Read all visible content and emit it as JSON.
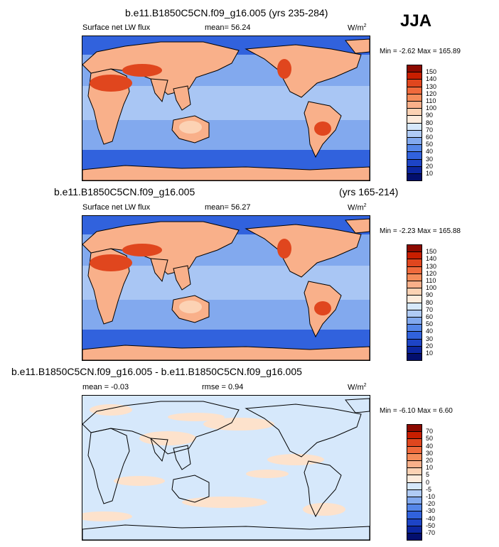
{
  "season": "JJA",
  "panels": [
    {
      "title": "b.e11.B1850C5CN.f09_g16.005 (yrs 235-284)",
      "title_right": "",
      "left_label": "Surface net LW flux",
      "center_label": "mean=  56.24",
      "units": "W/m",
      "units_sup": "2",
      "minmax": "Min =  -2.62 Max = 165.89",
      "levels": [
        "150",
        "140",
        "130",
        "120",
        "110",
        "100",
        "90",
        "80",
        "70",
        "60",
        "50",
        "40",
        "30",
        "20",
        "10"
      ],
      "colors": [
        "#8c0a00",
        "#c81e00",
        "#e0461e",
        "#f06a3c",
        "#f58c5a",
        "#f9b08a",
        "#fcd2b4",
        "#fdebdc",
        "#d6e8fb",
        "#b0cbf5",
        "#82a9ee",
        "#5586e8",
        "#3162dd",
        "#1d44c6",
        "#0c26a0",
        "#030f6e"
      ]
    },
    {
      "title": "b.e11.B1850C5CN.f09_g16.005",
      "title_right": "(yrs 165-214)",
      "left_label": "Surface net LW flux",
      "center_label": "mean=  56.27",
      "units": "W/m",
      "units_sup": "2",
      "minmax": "Min =  -2.23 Max = 165.88",
      "levels": [
        "150",
        "140",
        "130",
        "120",
        "110",
        "100",
        "90",
        "80",
        "70",
        "60",
        "50",
        "40",
        "30",
        "20",
        "10"
      ],
      "colors": [
        "#8c0a00",
        "#c81e00",
        "#e0461e",
        "#f06a3c",
        "#f58c5a",
        "#f9b08a",
        "#fcd2b4",
        "#fdebdc",
        "#d6e8fb",
        "#b0cbf5",
        "#82a9ee",
        "#5586e8",
        "#3162dd",
        "#1d44c6",
        "#0c26a0",
        "#030f6e"
      ]
    },
    {
      "title": "b.e11.B1850C5CN.f09_g16.005 - b.e11.B1850C5CN.f09_g16.005",
      "title_right": "",
      "left_label": "mean =  -0.03",
      "center_label": "rmse =   0.94",
      "units": "W/m",
      "units_sup": "2",
      "minmax": "Min =  -6.10 Max =   6.60",
      "levels": [
        "70",
        "50",
        "40",
        "30",
        "20",
        "10",
        "5",
        "0",
        "-5",
        "-10",
        "-20",
        "-30",
        "-40",
        "-50",
        "-70"
      ],
      "colors": [
        "#8c0a00",
        "#c81e00",
        "#e0461e",
        "#f06a3c",
        "#f58c5a",
        "#f9b08a",
        "#fcd2b4",
        "#fdebdc",
        "#d6e8fb",
        "#b0cbf5",
        "#82a9ee",
        "#5586e8",
        "#3162dd",
        "#1d44c6",
        "#0c26a0",
        "#030f6e"
      ]
    }
  ],
  "map_colors": {
    "ocean_mid": "#82a9ee",
    "ocean_high": "#b0cbf5",
    "ocean_deep": "#3162dd",
    "polar": "#1d44c6",
    "land_hot": "#e0461e",
    "land_warm": "#f9b08a",
    "land_mild": "#fcd2b4",
    "coast": "#000000",
    "diff_base": "#d6e8fb",
    "diff_pos": "#fde2cc"
  }
}
